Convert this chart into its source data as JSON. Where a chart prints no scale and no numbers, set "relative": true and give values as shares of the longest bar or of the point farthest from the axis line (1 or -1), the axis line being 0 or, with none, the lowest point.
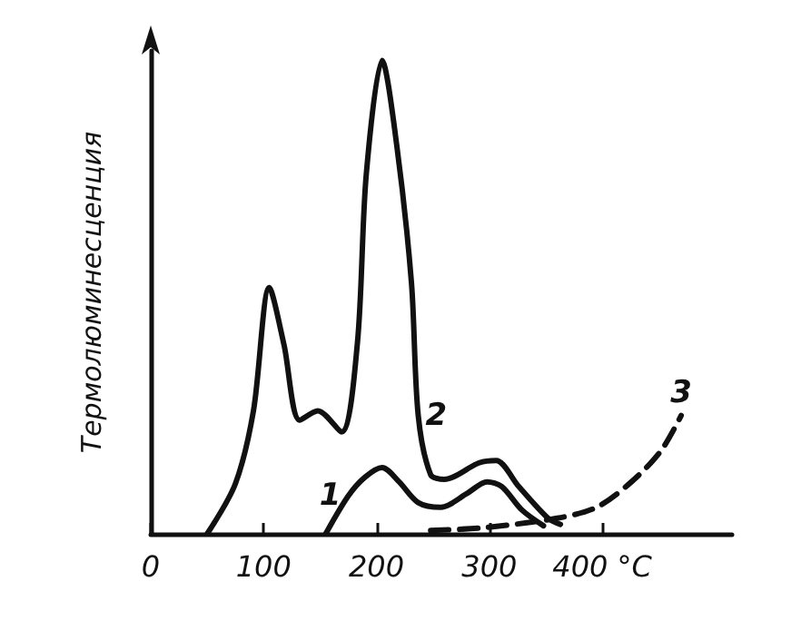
{
  "chart_data": {
    "type": "line",
    "relative": true,
    "ylabel": "Термолюминесценция",
    "xlim": [
      0,
      515
    ],
    "xticks": [
      0,
      100,
      200,
      300,
      {
        "value": 400,
        "label": "400 °C"
      }
    ],
    "grid": false,
    "legend": false,
    "marker": "none",
    "series": [
      {
        "name": "1",
        "color": "#111111",
        "line_style": "solid",
        "x": [
          155,
          175,
          190,
          205,
          220,
          237,
          257,
          280,
          298,
          311,
          329,
          348
        ],
        "values": [
          0,
          0.08,
          0.12,
          0.14,
          0.11,
          0.066,
          0.056,
          0.085,
          0.11,
          0.1,
          0.05,
          0.017
        ]
      },
      {
        "name": "2",
        "color": "#111111",
        "line_style": "solid",
        "x": [
          50,
          75,
          91,
          105,
          118,
          132,
          148,
          169,
          183,
          191,
          205,
          218,
          231,
          237,
          248,
          260,
          291,
          306,
          326,
          352,
          363
        ],
        "values": [
          0,
          0.106,
          0.26,
          0.52,
          0.4,
          0.24,
          0.26,
          0.215,
          0.4,
          0.76,
          1,
          0.82,
          0.53,
          0.25,
          0.125,
          0.115,
          0.15,
          0.155,
          0.1,
          0.033,
          0.02
        ]
      },
      {
        "name": "3",
        "color": "#111111",
        "line_style": "dashed",
        "x": [
          248,
          295,
          360,
          395,
          426,
          452,
          470
        ],
        "values": [
          0.007,
          0.013,
          0.033,
          0.056,
          0.11,
          0.175,
          0.25
        ]
      }
    ]
  }
}
